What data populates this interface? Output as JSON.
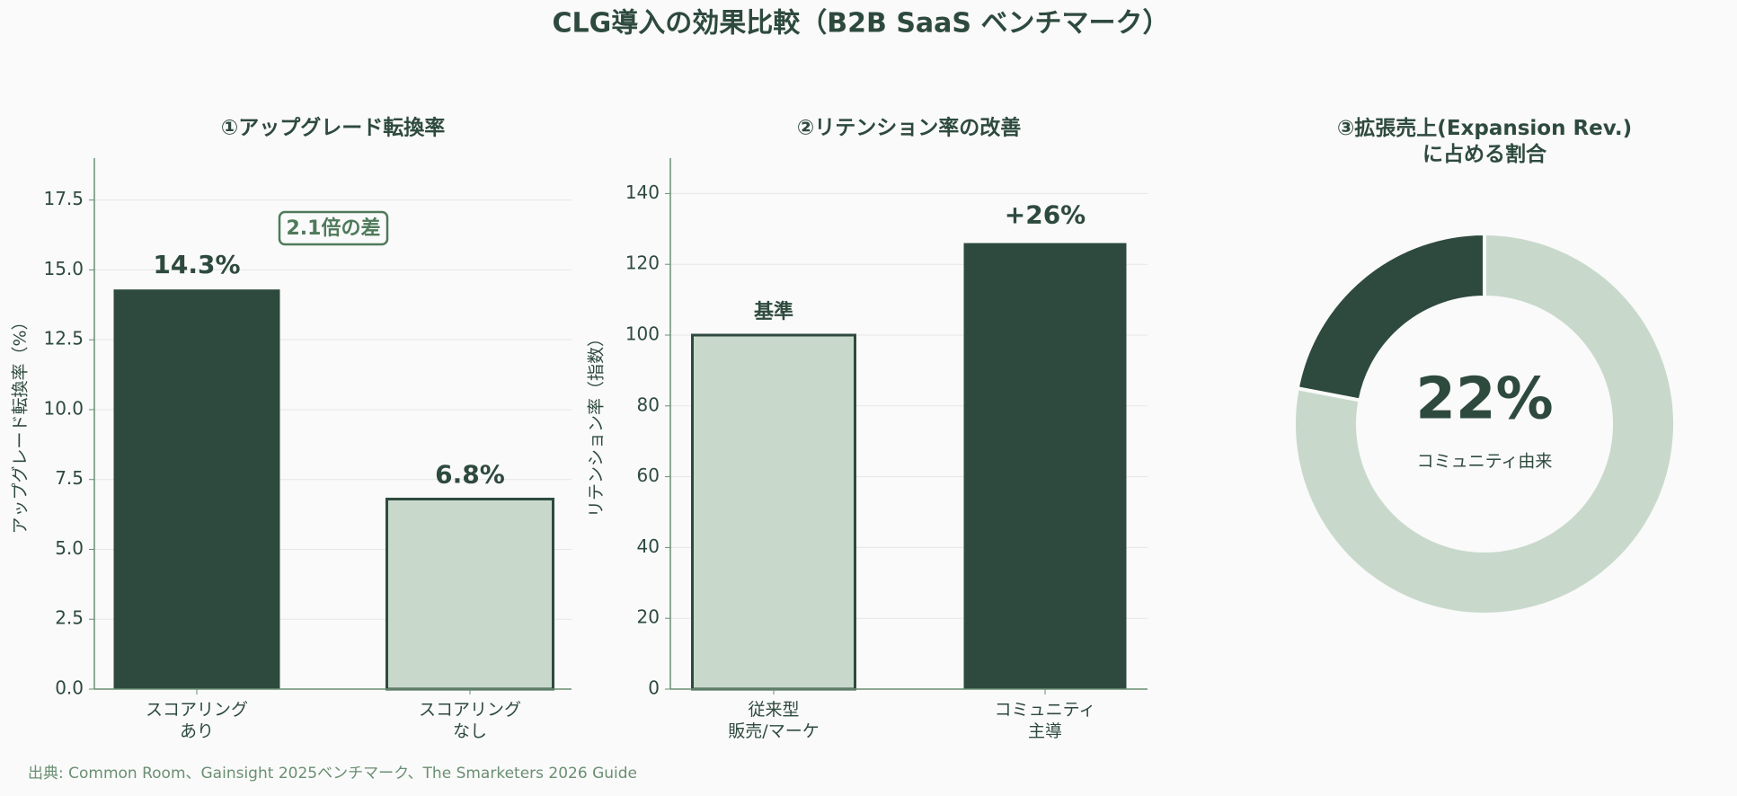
{
  "title": "CLG導入の効果比較（B2B SaaS ベンチマーク）",
  "source": "出典: Common Room、Gainsight 2025ベンチマーク、The Smarketers 2026 Guide",
  "chart_data": [
    {
      "type": "bar",
      "title": "①アップグレード転換率",
      "y_label": "アップグレード転換率（%）",
      "categories": [
        "スコアリング\nあり",
        "スコアリング\nなし"
      ],
      "values": [
        14.3,
        6.8
      ],
      "value_labels": [
        "14.3%",
        "6.8%"
      ],
      "colors": [
        "#2e4a3e",
        "#c8d9cc"
      ],
      "annotation": "2.1倍の差",
      "ylim": [
        0,
        19
      ],
      "yticks": [
        {
          "value": 0,
          "label": "0.0"
        },
        2.5,
        {
          "value": 5,
          "label": "5.0"
        },
        7.5,
        {
          "value": 10,
          "label": "10.0"
        },
        12.5,
        {
          "value": 15,
          "label": "15.0"
        },
        17.5
      ],
      "grid": true
    },
    {
      "type": "bar",
      "title": "②リテンション率の改善",
      "y_label": "リテンション率（指数）",
      "categories": [
        "従来型\n販売/マーケ",
        "コミュニティ\n主導"
      ],
      "values": [
        100,
        126
      ],
      "annotations": [
        "基準",
        "+26%"
      ],
      "colors": [
        "#c8d9cc",
        "#2e4a3e"
      ],
      "ylim": [
        0,
        150
      ],
      "yticks": [
        0,
        20,
        40,
        60,
        80,
        100,
        120,
        140
      ],
      "grid": true
    },
    {
      "type": "donut",
      "title": "③拡張売上(Expansion Rev.)\nに占める割合",
      "values": [
        22,
        78
      ],
      "colors": [
        "#2e4a3e",
        "#c8d9cc"
      ],
      "center_label": "22%",
      "center_text": "コミュニティ由来"
    }
  ]
}
